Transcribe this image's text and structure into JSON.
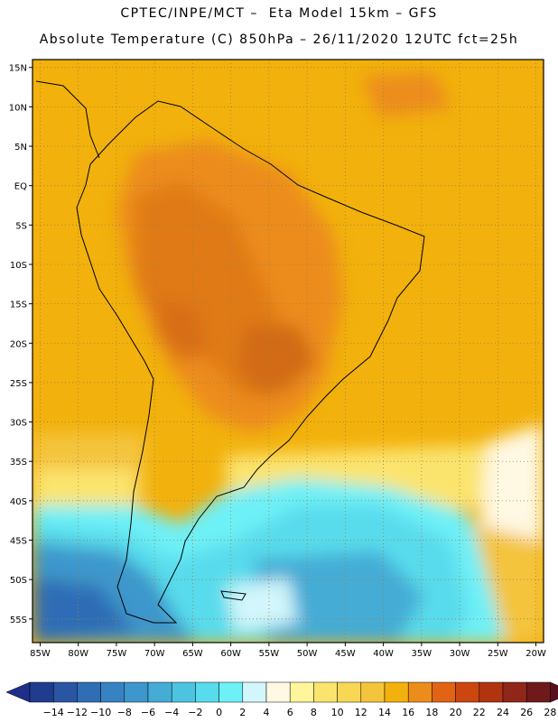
{
  "header": {
    "line1": "CPTEC/INPE/MCT –  Eta Model 15km – GFS",
    "line2": "Absolute Temperature (C) 850hPa – 26/11/2020 12UTC fct=25h"
  },
  "map": {
    "lon_min": -86,
    "lon_max": -19,
    "lat_min": -58,
    "lat_max": 16,
    "lat_ticks": [
      {
        "value": 15,
        "label": "15N"
      },
      {
        "value": 10,
        "label": "10N"
      },
      {
        "value": 5,
        "label": "5N"
      },
      {
        "value": 0,
        "label": "EQ"
      },
      {
        "value": -5,
        "label": "5S"
      },
      {
        "value": -10,
        "label": "10S"
      },
      {
        "value": -15,
        "label": "15S"
      },
      {
        "value": -20,
        "label": "20S"
      },
      {
        "value": -25,
        "label": "25S"
      },
      {
        "value": -30,
        "label": "30S"
      },
      {
        "value": -35,
        "label": "35S"
      },
      {
        "value": -40,
        "label": "40S"
      },
      {
        "value": -45,
        "label": "45S"
      },
      {
        "value": -50,
        "label": "50S"
      },
      {
        "value": -55,
        "label": "55S"
      }
    ],
    "lon_ticks": [
      {
        "value": -85,
        "label": "85W"
      },
      {
        "value": -80,
        "label": "80W"
      },
      {
        "value": -75,
        "label": "75W"
      },
      {
        "value": -70,
        "label": "70W"
      },
      {
        "value": -65,
        "label": "65W"
      },
      {
        "value": -60,
        "label": "60W"
      },
      {
        "value": -55,
        "label": "55W"
      },
      {
        "value": -50,
        "label": "50W"
      },
      {
        "value": -45,
        "label": "45W"
      },
      {
        "value": -40,
        "label": "40W"
      },
      {
        "value": -35,
        "label": "35W"
      },
      {
        "value": -30,
        "label": "30W"
      },
      {
        "value": -25,
        "label": "25W"
      },
      {
        "value": -20,
        "label": "20W"
      }
    ]
  },
  "colorbar": {
    "labels": [
      "-14",
      "-12",
      "-10",
      "-8",
      "-6",
      "-4",
      "-2",
      "0",
      "2",
      "4",
      "6",
      "8",
      "10",
      "12",
      "14",
      "16",
      "18",
      "20",
      "22",
      "24",
      "26",
      "28"
    ],
    "colors": [
      "#1f3c8f",
      "#2a55a3",
      "#2f6db5",
      "#3782c2",
      "#3e97cc",
      "#45acd6",
      "#4cc4e0",
      "#58dbec",
      "#6ef0f7",
      "#d2f6fb",
      "#fff8e3",
      "#fff59a",
      "#fbe46e",
      "#f8d755",
      "#f4c43c",
      "#f2b10c",
      "#ec8c1a",
      "#e06414",
      "#cc4610",
      "#b03410",
      "#90261a",
      "#6e1a1a"
    ],
    "under_color": "#1e2f8a",
    "over_color": "#5a0f1e"
  }
}
